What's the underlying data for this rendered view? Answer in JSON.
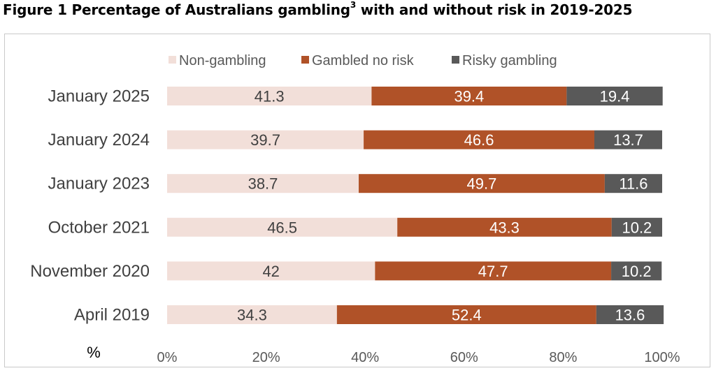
{
  "figure": {
    "title": "Figure 1 Percentage of Australians gambling",
    "title_superscript": "3",
    "title_suffix": " with and without risk in 2019-2025"
  },
  "colors": {
    "non_gambling": "#f2dfd9",
    "gambled_no_risk": "#b05228",
    "risky_gambling": "#595959",
    "label_dark": "#404040",
    "label_light": "#ffffff",
    "axis_text": "#595959"
  },
  "chart_data": {
    "type": "bar",
    "orientation": "horizontal",
    "stacked": true,
    "categories": [
      "January 2025",
      "January 2024",
      "January 2023",
      "October 2021",
      "November 2020",
      "April 2019"
    ],
    "series": [
      {
        "name": "Non-gambling",
        "values": [
          41.3,
          39.7,
          38.7,
          46.5,
          42,
          34.3
        ]
      },
      {
        "name": "Gambled no risk",
        "values": [
          39.4,
          46.6,
          49.7,
          43.3,
          47.7,
          52.4
        ]
      },
      {
        "name": "Risky gambling",
        "values": [
          19.4,
          13.7,
          11.6,
          10.2,
          10.2,
          13.6
        ]
      }
    ],
    "x_ticks": [
      "0%",
      "20%",
      "40%",
      "60%",
      "80%",
      "100%"
    ],
    "xlim": [
      0,
      100
    ],
    "xlabel": "%",
    "legend_position": "top",
    "grid": false
  }
}
